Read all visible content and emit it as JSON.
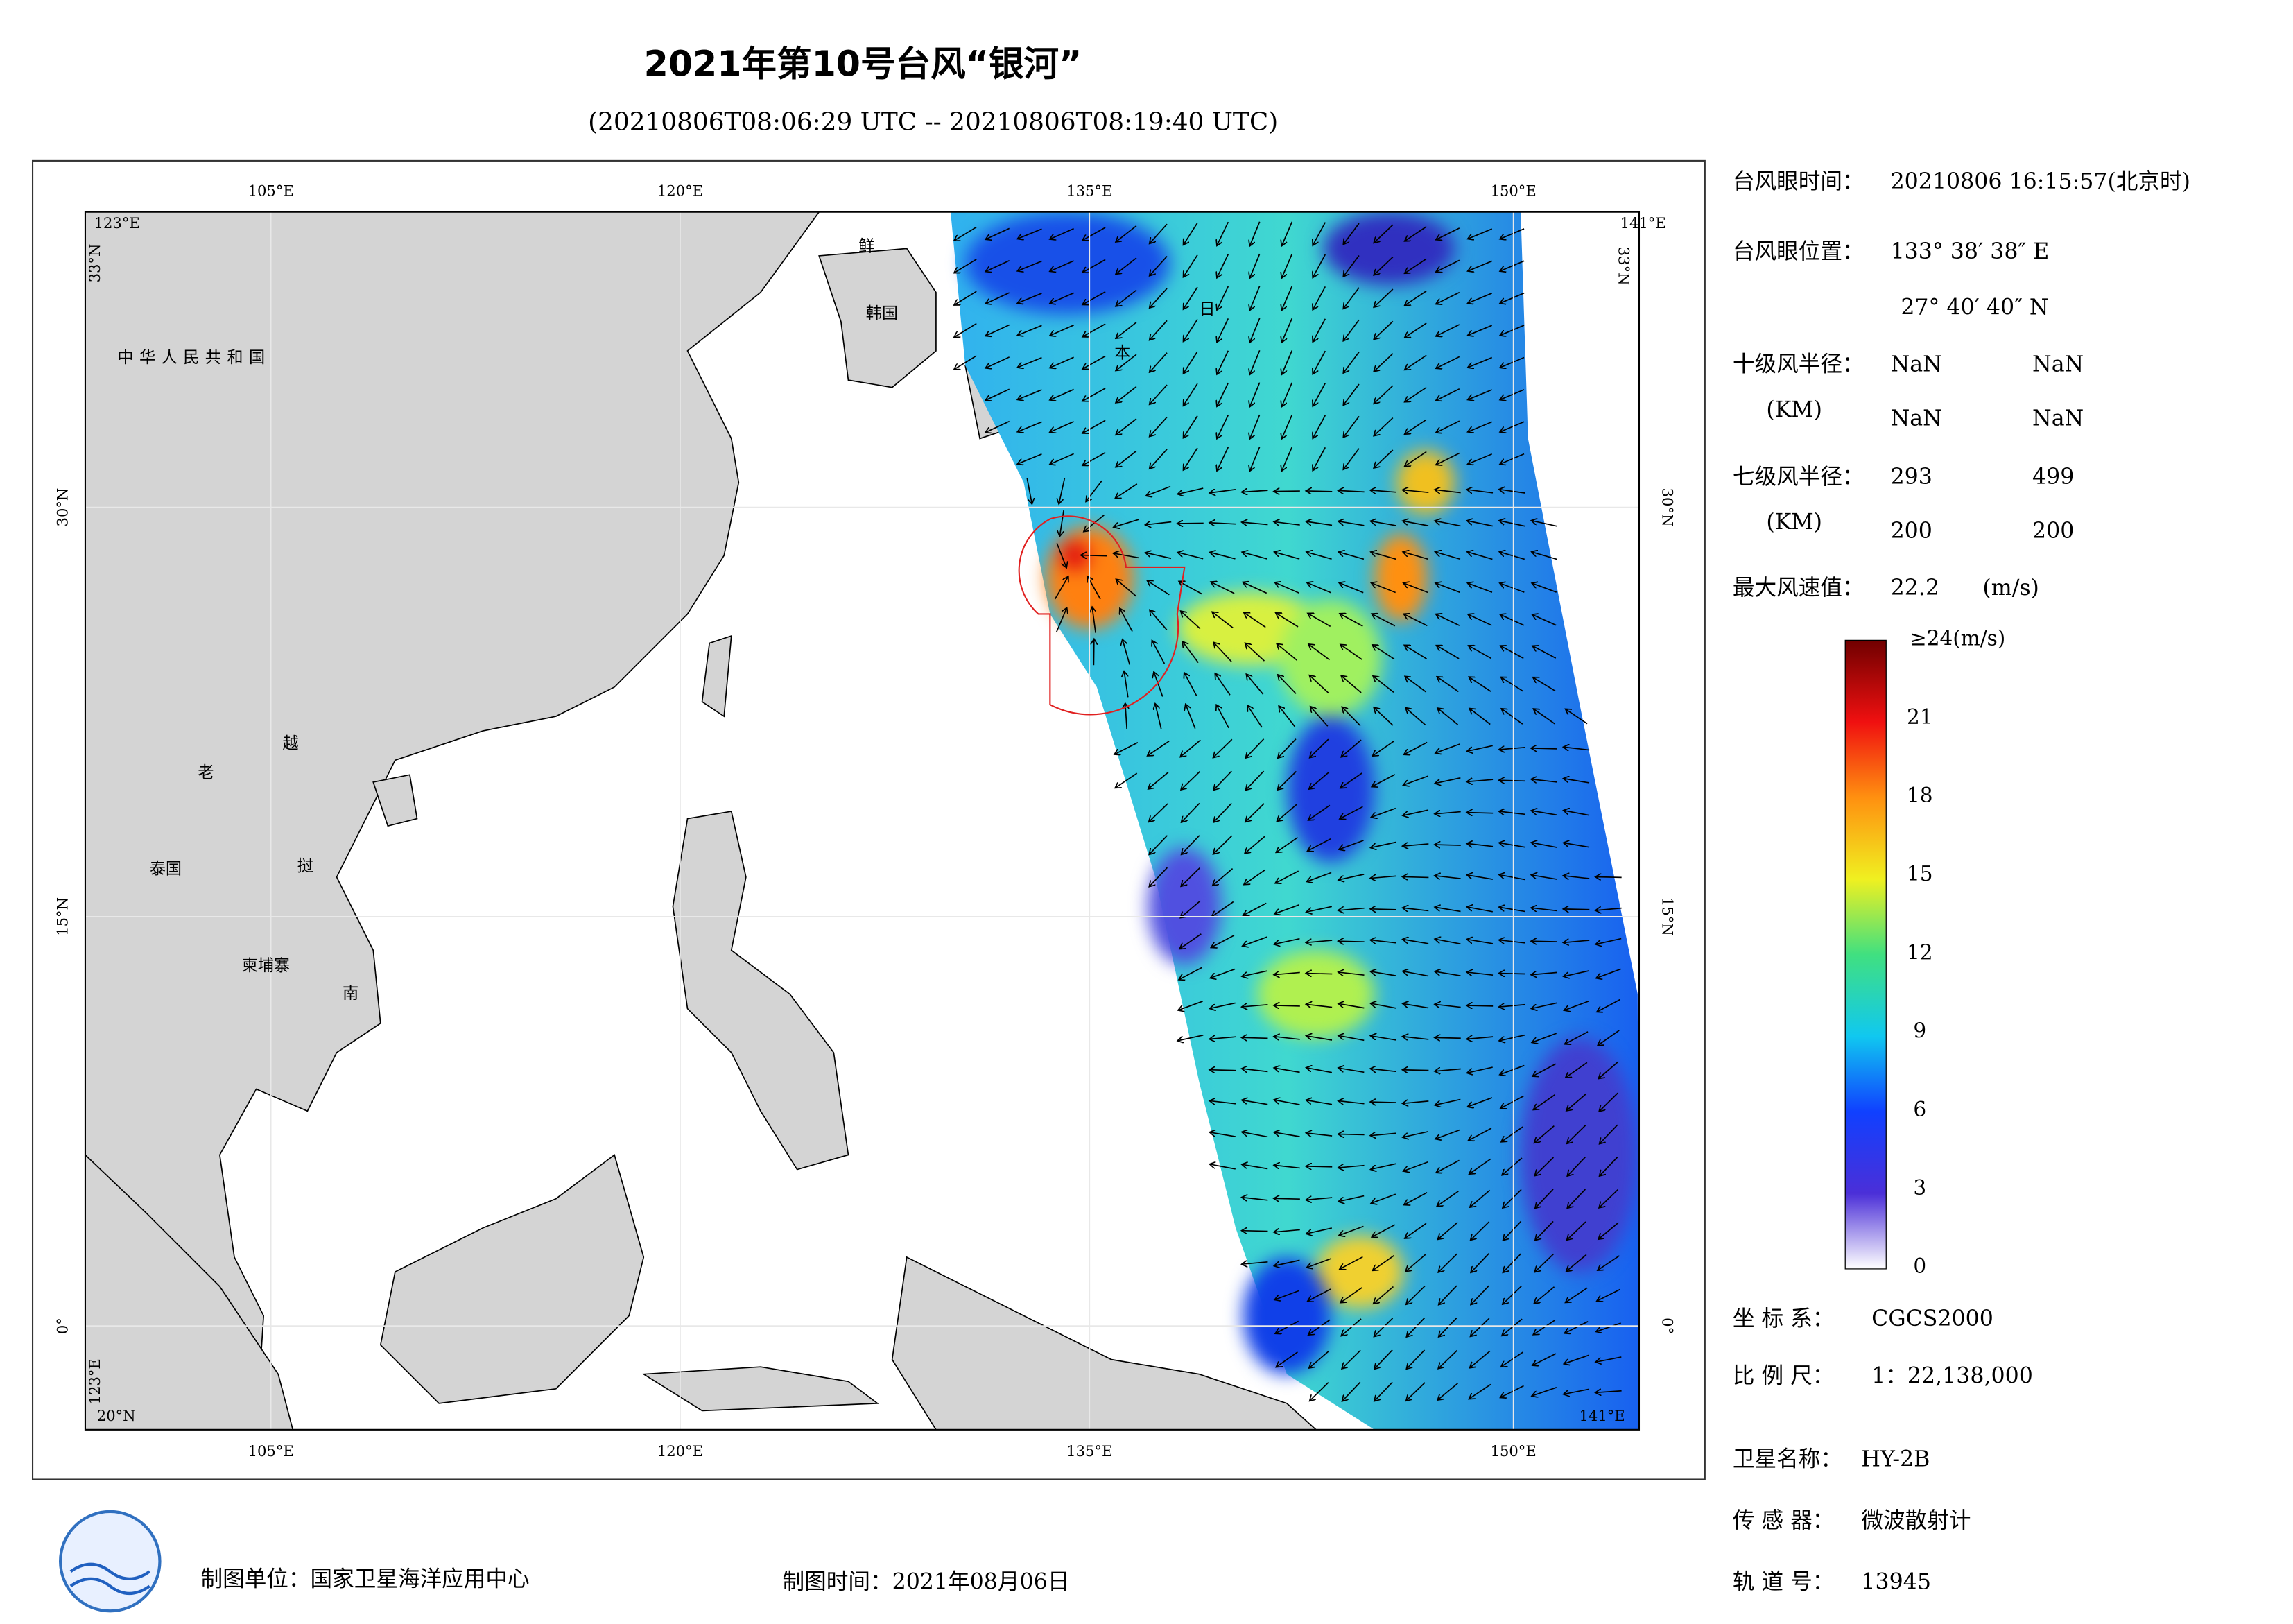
{
  "title": "2021年第10号台风“银河”",
  "subtitle": "(20210806T08:06:29 UTC -- 20210806T08:19:40 UTC)",
  "map": {
    "lon_labels": [
      "105°E",
      "120°E",
      "135°E",
      "150°E"
    ],
    "lat_labels": [
      "30°N",
      "15°N",
      "0°"
    ],
    "corner_labels": [
      "123°E",
      "141°E",
      "33°N",
      "33°N",
      "20°N",
      "141°E",
      "123°E"
    ],
    "place_labels": [
      "中华人民共和国",
      "老",
      "越",
      "泰国",
      "挝",
      "柬埔寨",
      "南",
      "鲜",
      "韩国",
      "日",
      "本"
    ]
  },
  "info": {
    "eye_time": {
      "label": "台风眼时间：",
      "value": "20210806 16:15:57(北京时)"
    },
    "eye_position": {
      "label": "台风眼位置：",
      "lon": "133° 38′ 38″ E",
      "lat": "27° 40′ 40″ N"
    },
    "r10": {
      "label": "十级风半径：",
      "unit": "(KM)",
      "values": [
        "NaN",
        "NaN",
        "NaN",
        "NaN"
      ]
    },
    "r7": {
      "label": "七级风半径：",
      "unit": "(KM)",
      "values": [
        293,
        499,
        200,
        200
      ]
    },
    "max_wind": {
      "label": "最大风速值：",
      "value": 22.2,
      "unit": "(m/s)"
    },
    "crs": {
      "label": "坐 标 系：",
      "value": "CGCS2000"
    },
    "scale": {
      "label": "比 例 尺：",
      "value": "1：22,138,000"
    },
    "satellite": {
      "label": "卫星名称：",
      "value": "HY-2B"
    },
    "sensor": {
      "label": "传 感 器：",
      "value": "微波散射计"
    },
    "orbit": {
      "label": "轨 道 号：",
      "value": 13945
    }
  },
  "colorbar": {
    "ticks": [
      0,
      3,
      6,
      9,
      12,
      15,
      18,
      21,
      {
        "value": 24,
        "label": "≥24(m/s)"
      }
    ]
  },
  "footer": {
    "unit": "制图单位：国家卫星海洋应用中心",
    "date": "制图时间：2021年08月06日"
  }
}
